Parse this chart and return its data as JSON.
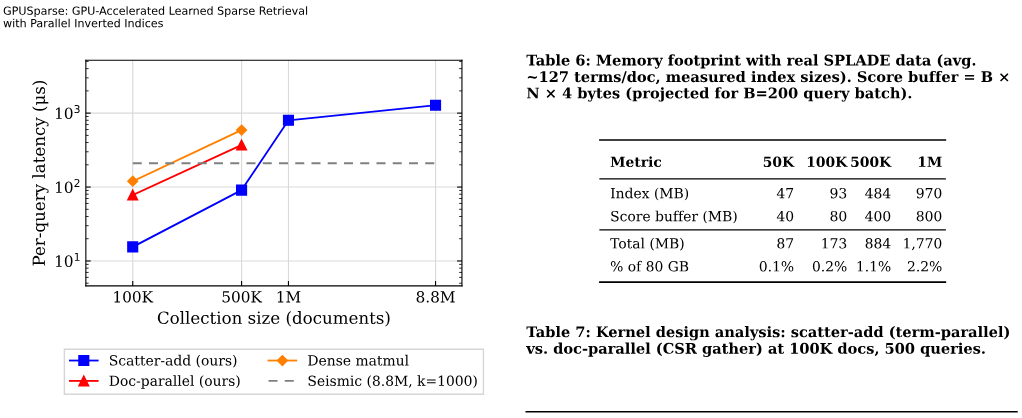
{
  "chart_data": [
    {
      "type": "line",
      "xlabel": "Collection size (documents)",
      "ylabel": "Per-query latency (μs)",
      "annotations": [
        "GPUSparse: GPU-Accelerated Learned Sparse Retrieval\nwith Parallel Inverted Indices"
      ],
      "log": "xy",
      "xlim": [
        50000,
        13000000
      ],
      "xticks": [
        {
          "value": 100000,
          "label": "100K"
        },
        {
          "value": 500000,
          "label": "500K"
        },
        {
          "value": 1000000,
          "label": "1M"
        },
        {
          "value": 8800000,
          "label": "8.8M"
        }
      ],
      "ylim": [
        4.6,
        5200
      ],
      "yticks": [
        {
          "value": 10,
          "label": "10$^{1}$"
        },
        {
          "value": 100,
          "label": "10$^{2}$"
        },
        {
          "value": 1000,
          "label": "10$^{3}$"
        }
      ],
      "grid": true,
      "legend": "bottom",
      "series": [
        {
          "name": "Scatter-add (ours)",
          "color": "#0000ff",
          "marker": "square",
          "line_style": "solid",
          "x": [
            100000,
            500000,
            1000000,
            8800000
          ],
          "values": [
            15.5,
            91,
            800,
            1280
          ]
        },
        {
          "name": "Doc-parallel (ours)",
          "color": "#ff0000",
          "marker": "triangle",
          "line_style": "solid",
          "x": [
            100000,
            500000
          ],
          "values": [
            78,
            370
          ]
        },
        {
          "name": "Dense matmul",
          "color": "#ff8000",
          "marker": "diamond",
          "line_style": "solid",
          "x": [
            100000,
            500000
          ],
          "values": [
            120,
            590
          ]
        },
        {
          "name": "Seismic (8.8M, k=1000)",
          "color": "#808080",
          "marker": "none",
          "line_style": "dashed",
          "x": [
            100000,
            8800000
          ],
          "values": [
            210,
            210
          ]
        }
      ]
    },
    {
      "type": "other",
      "title": "Table 6: Memory footprint with real SPLADE data (avg. ~127 terms/doc, measured index sizes). Score buffer = B × N × 4 bytes (projected for B=200 query batch).",
      "ylabel": "Metric",
      "categories": [
        "50K",
        "100K",
        "500K",
        "1M"
      ],
      "y_categories": [
        "Index (MB)",
        "Score buffer (MB)",
        "Total (MB)",
        "% of 80 GB"
      ],
      "cell_labels": [
        [
          "47",
          "93",
          "484",
          "970"
        ],
        [
          "40",
          "80",
          "400",
          "800"
        ],
        [
          "87",
          "173",
          "884",
          "1,770"
        ],
        [
          "0.1%",
          "0.2%",
          "1.1%",
          "2.2%"
        ]
      ]
    },
    {
      "type": "other",
      "title": "Table 7: Kernel design analysis: scatter-add (term-parallel) vs. doc-parallel (CSR gather) at 100K docs, 500 queries."
    }
  ]
}
